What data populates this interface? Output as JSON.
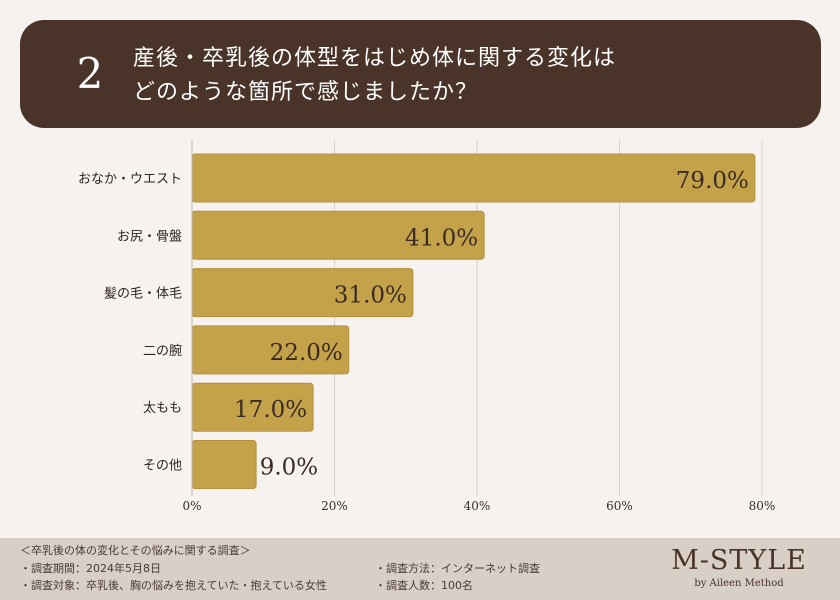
{
  "question": {
    "number": "2",
    "line1": "産後・卒乳後の体型をはじめ体に関する変化は",
    "line2": "どのような箇所で感じましたか？"
  },
  "chart_data": {
    "type": "bar",
    "orientation": "horizontal",
    "categories": [
      "おなか・ウエスト",
      "お尻・骨盤",
      "髪の毛・体毛",
      "二の腕",
      "太もも",
      "その他"
    ],
    "values": [
      79.0,
      41.0,
      31.0,
      22.0,
      17.0,
      9.0
    ],
    "value_labels": [
      "79.0%",
      "41.0%",
      "31.0%",
      "22.0%",
      "17.0%",
      "9.0%"
    ],
    "xlim": [
      0,
      80
    ],
    "ticks": [
      "0%",
      "20%",
      "40%",
      "60%",
      "80%"
    ],
    "tick_values": [
      0,
      20,
      40,
      60,
      80
    ],
    "grid": true,
    "colors": {
      "bar": "#c4a24a",
      "bar_edge": "#b3913c",
      "grid": "#d6d0cb",
      "label": "#3a2b24"
    }
  },
  "footer": {
    "survey_title": "＜卒乳後の体の変化とその悩みに関する調査＞",
    "period": "・調査期間：2024年5月8日",
    "target": "・調査対象：卒乳後、胸の悩みを抱えていた・抱えている女性",
    "method": "・調査方法：インターネット調査",
    "count": "・調査人数：100名",
    "brand": "M-STYLE",
    "brand_sub": "by Aileen Method"
  }
}
